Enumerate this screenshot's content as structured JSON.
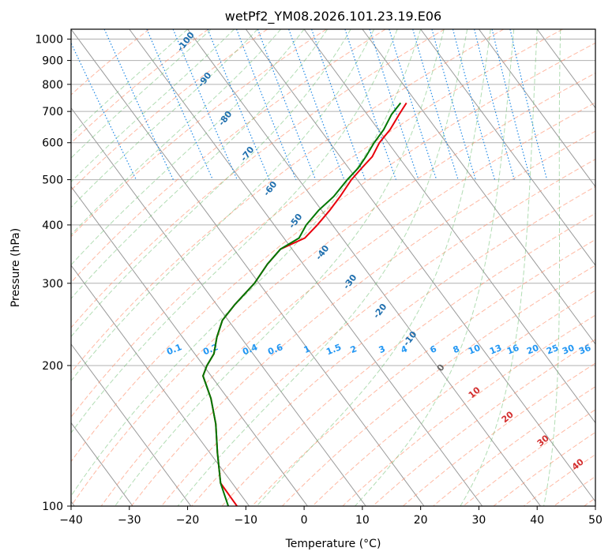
{
  "chart_data": {
    "type": "line",
    "subtype": "skew-t log-p diagram",
    "title": "wetPf2_YM08.2026.101.23.19.E06",
    "xlabel": "Temperature (°C)",
    "ylabel": "Pressure (hPa)",
    "xlim": [
      -40,
      50
    ],
    "ylim": [
      1050,
      100
    ],
    "y_scale": "log",
    "grid": true,
    "x_ticks": [
      -40,
      -30,
      -20,
      -10,
      0,
      10,
      20,
      30,
      40,
      50
    ],
    "x_tick_labels": [
      "−40",
      "−30",
      "−20",
      "−10",
      "0",
      "10",
      "20",
      "30",
      "40",
      "50"
    ],
    "y_ticks": [
      100,
      200,
      300,
      400,
      500,
      600,
      700,
      800,
      900,
      1000
    ],
    "y_tick_labels": [
      "100",
      "200",
      "300",
      "400",
      "500",
      "600",
      "700",
      "800",
      "900",
      "1000"
    ],
    "series": [
      {
        "color": "#e8000b",
        "points": [
          {
            "p": 100,
            "t": -72.1
          },
          {
            "p": 112,
            "t": -72.0
          },
          {
            "p": 130,
            "t": -68.7
          },
          {
            "p": 150,
            "t": -65.3
          },
          {
            "p": 170,
            "t": -62.9
          },
          {
            "p": 190,
            "t": -61.4
          },
          {
            "p": 200,
            "t": -59.4
          },
          {
            "p": 212,
            "t": -56.7
          },
          {
            "p": 230,
            "t": -54.1
          },
          {
            "p": 250,
            "t": -51.0
          },
          {
            "p": 270,
            "t": -46.9
          },
          {
            "p": 300,
            "t": -40.8
          },
          {
            "p": 330,
            "t": -36.1
          },
          {
            "p": 355,
            "t": -32.0
          },
          {
            "p": 375,
            "t": -26.4
          },
          {
            "p": 400,
            "t": -22.6
          },
          {
            "p": 430,
            "t": -18.6
          },
          {
            "p": 460,
            "t": -15.1
          },
          {
            "p": 500,
            "t": -11.0
          },
          {
            "p": 530,
            "t": -7.7
          },
          {
            "p": 560,
            "t": -4.5
          },
          {
            "p": 600,
            "t": -1.5
          },
          {
            "p": 640,
            "t": 2.0
          },
          {
            "p": 690,
            "t": 5.5
          },
          {
            "p": 730,
            "t": 8.2
          }
        ]
      },
      {
        "color": "#007700",
        "points": [
          {
            "p": 100,
            "t": -73.6
          },
          {
            "p": 112,
            "t": -72.0
          },
          {
            "p": 130,
            "t": -68.7
          },
          {
            "p": 150,
            "t": -65.3
          },
          {
            "p": 170,
            "t": -62.9
          },
          {
            "p": 190,
            "t": -61.4
          },
          {
            "p": 200,
            "t": -59.4
          },
          {
            "p": 212,
            "t": -56.7
          },
          {
            "p": 230,
            "t": -54.1
          },
          {
            "p": 250,
            "t": -51.0
          },
          {
            "p": 270,
            "t": -46.9
          },
          {
            "p": 300,
            "t": -40.8
          },
          {
            "p": 330,
            "t": -36.1
          },
          {
            "p": 355,
            "t": -32.0
          },
          {
            "p": 375,
            "t": -27.4
          },
          {
            "p": 400,
            "t": -24.5
          },
          {
            "p": 430,
            "t": -20.5
          },
          {
            "p": 460,
            "t": -16.2
          },
          {
            "p": 500,
            "t": -11.7
          },
          {
            "p": 530,
            "t": -8.3
          },
          {
            "p": 560,
            "t": -5.6
          },
          {
            "p": 600,
            "t": -2.4
          },
          {
            "p": 640,
            "t": 0.9
          },
          {
            "p": 690,
            "t": 4.2
          },
          {
            "p": 730,
            "t": 7.2
          }
        ]
      }
    ],
    "dry_adiabat_labels": [
      "-100",
      "-90",
      "-80",
      "-70",
      "-60",
      "-50",
      "-40",
      "-30",
      "-20",
      "-10",
      "0",
      "10",
      "20",
      "30",
      "40"
    ],
    "mixing_ratio_labels": [
      "0.1",
      "0.2",
      "0.4",
      "0.6",
      "1",
      "1.5",
      "2",
      "3",
      "4",
      "6",
      "8",
      "10",
      "13",
      "16",
      "20",
      "25",
      "30",
      "36"
    ],
    "colors": {
      "temperature": "#e8000b",
      "dewpoint": "#007700",
      "isotherm": "#9a9a9a",
      "dry_adiabat": "#ff8a65",
      "moist_adiabat": "#66bb6a",
      "mixing_ratio": "#1e88e5",
      "dry_label": "#1f6fae",
      "mixing_label": "#2196f3",
      "moist_label": "#d32f2f",
      "zero_label": "#666666"
    }
  }
}
